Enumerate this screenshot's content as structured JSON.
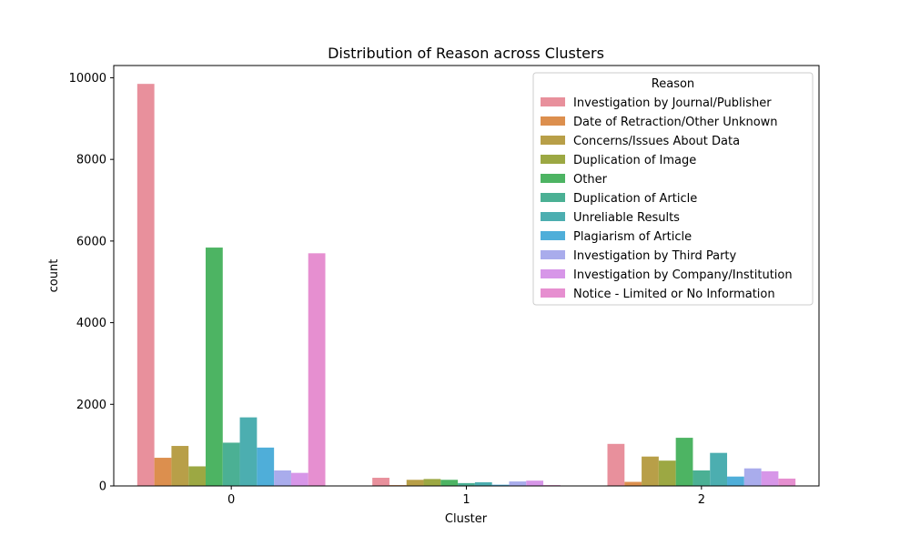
{
  "chart_data": {
    "type": "bar",
    "title": "Distribution of Reason across Clusters",
    "xlabel": "Cluster",
    "ylabel": "count",
    "categories": [
      "0",
      "1",
      "2"
    ],
    "ylim": [
      0,
      10300
    ],
    "yticks": [
      0,
      2000,
      4000,
      6000,
      8000,
      10000
    ],
    "legend": {
      "title": "Reason",
      "position": "top-right"
    },
    "series": [
      {
        "name": "Investigation by Journal/Publisher",
        "color": "#e8909c",
        "values": [
          9850,
          200,
          1030
        ]
      },
      {
        "name": "Date of Retraction/Other Unknown",
        "color": "#dc8f4e",
        "values": [
          690,
          20,
          100
        ]
      },
      {
        "name": "Concerns/Issues About Data",
        "color": "#b89f48",
        "values": [
          980,
          150,
          720
        ]
      },
      {
        "name": "Duplication of Image",
        "color": "#9ca843",
        "values": [
          480,
          170,
          620
        ]
      },
      {
        "name": "Other",
        "color": "#4db463",
        "values": [
          5840,
          150,
          1180
        ]
      },
      {
        "name": "Duplication of Article",
        "color": "#4bb094",
        "values": [
          1060,
          70,
          380
        ]
      },
      {
        "name": "Unreliable Results",
        "color": "#4caeb0",
        "values": [
          1680,
          90,
          810
        ]
      },
      {
        "name": "Plagiarism of Article",
        "color": "#4faed9",
        "values": [
          940,
          30,
          230
        ]
      },
      {
        "name": "Investigation by Third Party",
        "color": "#a9acec",
        "values": [
          380,
          110,
          430
        ]
      },
      {
        "name": "Investigation by Company/Institution",
        "color": "#d796e8",
        "values": [
          320,
          130,
          360
        ]
      },
      {
        "name": "Notice - Limited or No Information",
        "color": "#e68fd0",
        "values": [
          5700,
          20,
          180
        ]
      }
    ]
  }
}
